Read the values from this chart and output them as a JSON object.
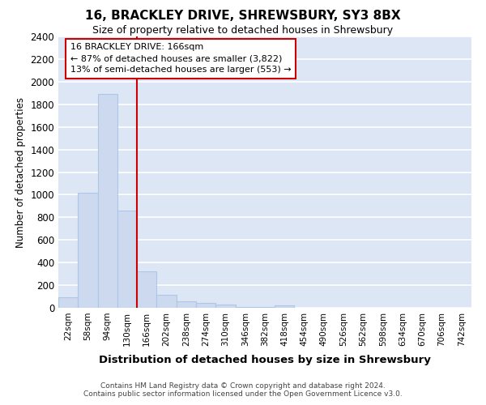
{
  "title": "16, BRACKLEY DRIVE, SHREWSBURY, SY3 8BX",
  "subtitle": "Size of property relative to detached houses in Shrewsbury",
  "xlabel": "Distribution of detached houses by size in Shrewsbury",
  "ylabel": "Number of detached properties",
  "bar_color": "#ccd9ee",
  "bar_edge_color": "#aec6e8",
  "background_color": "#dce6f5",
  "grid_color": "#ffffff",
  "categories": [
    "22sqm",
    "58sqm",
    "94sqm",
    "130sqm",
    "166sqm",
    "202sqm",
    "238sqm",
    "274sqm",
    "310sqm",
    "346sqm",
    "382sqm",
    "418sqm",
    "454sqm",
    "490sqm",
    "526sqm",
    "562sqm",
    "598sqm",
    "634sqm",
    "670sqm",
    "706sqm",
    "742sqm"
  ],
  "bar_heights": [
    90,
    1020,
    1890,
    860,
    320,
    115,
    55,
    45,
    30,
    10,
    5,
    25,
    0,
    0,
    0,
    0,
    0,
    0,
    0,
    0,
    0
  ],
  "vline_pos": 4,
  "vline_color": "#cc0000",
  "annotation_line1": "16 BRACKLEY DRIVE: 166sqm",
  "annotation_line2": "← 87% of detached houses are smaller (3,822)",
  "annotation_line3": "13% of semi-detached houses are larger (553) →",
  "annotation_box_color": "#cc0000",
  "ylim": [
    0,
    2400
  ],
  "yticks": [
    0,
    200,
    400,
    600,
    800,
    1000,
    1200,
    1400,
    1600,
    1800,
    2000,
    2200,
    2400
  ],
  "footer_line1": "Contains HM Land Registry data © Crown copyright and database right 2024.",
  "footer_line2": "Contains public sector information licensed under the Open Government Licence v3.0."
}
